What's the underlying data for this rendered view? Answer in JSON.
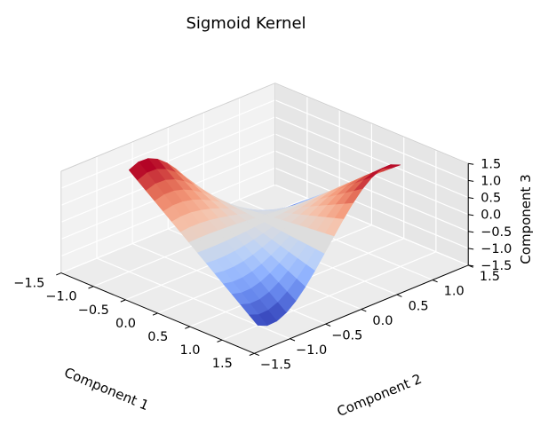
{
  "chart_data": {
    "type": "surface3d",
    "title": "Sigmoid Kernel",
    "xlabel": "Component 1",
    "ylabel": "Component 2",
    "zlabel": "Component 3",
    "xlim": [
      -1.5,
      1.5
    ],
    "ylim": [
      -1.5,
      1.5
    ],
    "zlim": [
      -1.5,
      1.5
    ],
    "x_ticks": [
      "−1.5",
      "−1.0",
      "−0.5",
      "0.0",
      "0.5",
      "1.0",
      "1.5"
    ],
    "y_ticks": [
      "−1.5",
      "−1.0",
      "−0.5",
      "0.0",
      "0.5",
      "1.0",
      "1.5"
    ],
    "z_ticks": [
      "−1.5",
      "−1.0",
      "−0.5",
      "0.0",
      "0.5",
      "1.0",
      "1.5"
    ],
    "x_tick_values": [
      -1.5,
      -1.0,
      -0.5,
      0.0,
      0.5,
      1.0,
      1.5
    ],
    "y_tick_values": [
      -1.5,
      -1.0,
      -0.5,
      0.0,
      0.5,
      1.0,
      1.5
    ],
    "z_tick_values": [
      -1.5,
      -1.0,
      -0.5,
      0.0,
      0.5,
      1.0,
      1.5
    ],
    "grid": true,
    "colormap": "coolwarm",
    "colors": {
      "low": "#3b4cc0",
      "mid": "#dddddd",
      "high": "#b40426"
    },
    "surface": {
      "u_range": [
        -1.0,
        1.0
      ],
      "v_range": [
        -1.0,
        1.0
      ],
      "grid_size": 15,
      "x": "u",
      "y": "v",
      "z": "1.5*u*v*(2 - v*v)"
    }
  }
}
